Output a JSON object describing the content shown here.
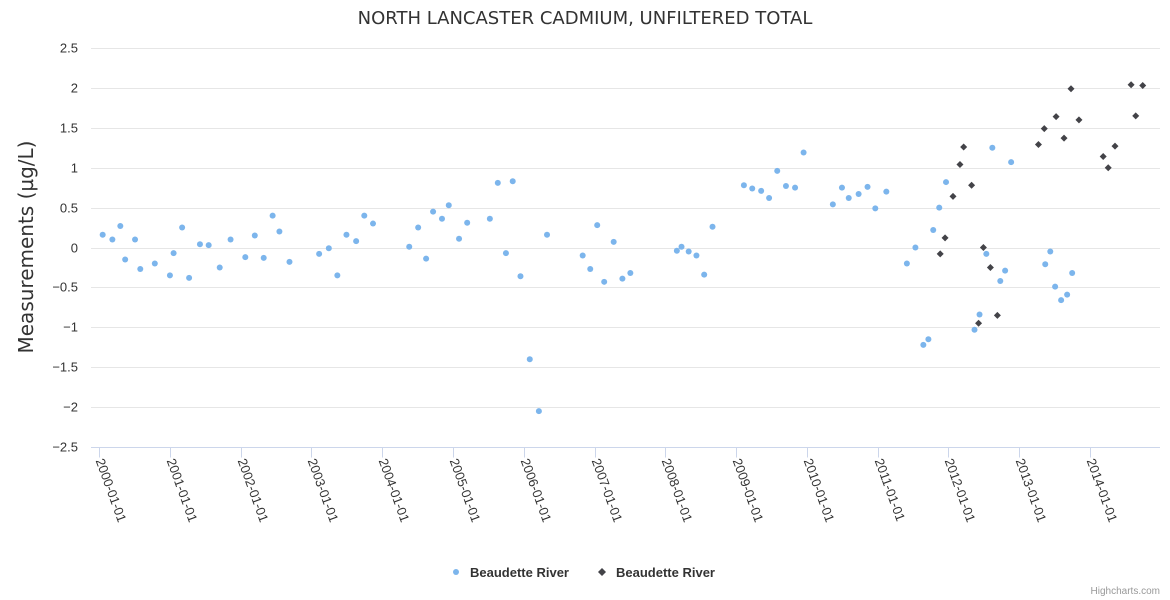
{
  "chart_data": {
    "type": "scatter",
    "title": "NORTH LANCASTER CADMIUM, UNFILTERED TOTAL",
    "xlabel": "",
    "ylabel": "Measurements (µg/L)",
    "ylim": [
      -2.5,
      2.5
    ],
    "y_ticks": [
      "2.5",
      "2",
      "1.5",
      "1",
      "0.5",
      "0",
      "−0.5",
      "−1",
      "−1.5",
      "−2",
      "−2.5"
    ],
    "x_ticks": [
      "2000-01-01",
      "2001-01-01",
      "2002-01-01",
      "2003-01-01",
      "2004-01-01",
      "2005-01-01",
      "2006-01-01",
      "2007-01-01",
      "2008-01-01",
      "2009-01-01",
      "2010-01-01",
      "2011-01-01",
      "2012-01-01",
      "2013-01-01",
      "2014-01-01"
    ],
    "xlim": [
      "2000-01-01",
      "2014-12-31"
    ],
    "grid": "horizontal",
    "legend_position": "bottom-center",
    "series": [
      {
        "name": "Beaudette River",
        "marker": "circle",
        "color": "#7cb5ec",
        "points": [
          [
            "2000-01-20",
            0.16
          ],
          [
            "2000-03-10",
            0.1
          ],
          [
            "2000-04-20",
            0.27
          ],
          [
            "2000-05-15",
            -0.15
          ],
          [
            "2000-07-05",
            0.1
          ],
          [
            "2000-08-01",
            -0.27
          ],
          [
            "2000-10-15",
            -0.2
          ],
          [
            "2001-01-01",
            -0.35
          ],
          [
            "2001-01-20",
            -0.07
          ],
          [
            "2001-03-05",
            0.25
          ],
          [
            "2001-04-10",
            -0.38
          ],
          [
            "2001-06-05",
            0.04
          ],
          [
            "2001-07-20",
            0.03
          ],
          [
            "2001-09-15",
            -0.25
          ],
          [
            "2001-11-10",
            0.1
          ],
          [
            "2002-01-25",
            -0.12
          ],
          [
            "2002-03-15",
            0.15
          ],
          [
            "2002-04-30",
            -0.13
          ],
          [
            "2002-06-15",
            0.4
          ],
          [
            "2002-07-20",
            0.2
          ],
          [
            "2002-09-10",
            -0.18
          ],
          [
            "2003-02-10",
            -0.08
          ],
          [
            "2003-04-01",
            -0.01
          ],
          [
            "2003-05-15",
            -0.35
          ],
          [
            "2003-07-01",
            0.16
          ],
          [
            "2003-08-20",
            0.08
          ],
          [
            "2003-10-01",
            0.4
          ],
          [
            "2003-11-15",
            0.3
          ],
          [
            "2004-05-20",
            0.01
          ],
          [
            "2004-07-05",
            0.25
          ],
          [
            "2004-08-15",
            -0.14
          ],
          [
            "2004-09-20",
            0.45
          ],
          [
            "2004-11-05",
            0.36
          ],
          [
            "2004-12-10",
            0.53
          ],
          [
            "2005-02-01",
            0.11
          ],
          [
            "2005-03-15",
            0.31
          ],
          [
            "2005-07-10",
            0.36
          ],
          [
            "2005-08-20",
            0.81
          ],
          [
            "2005-10-01",
            -0.07
          ],
          [
            "2005-11-05",
            0.83
          ],
          [
            "2005-12-15",
            -0.36
          ],
          [
            "2006-02-01",
            -1.4
          ],
          [
            "2006-03-20",
            -2.05
          ],
          [
            "2006-05-01",
            0.16
          ],
          [
            "2006-11-01",
            -0.1
          ],
          [
            "2006-12-10",
            -0.27
          ],
          [
            "2007-01-15",
            0.28
          ],
          [
            "2007-02-20",
            -0.43
          ],
          [
            "2007-04-10",
            0.07
          ],
          [
            "2007-05-25",
            -0.39
          ],
          [
            "2007-07-05",
            -0.32
          ],
          [
            "2008-03-01",
            -0.04
          ],
          [
            "2008-03-25",
            0.01
          ],
          [
            "2008-05-01",
            -0.05
          ],
          [
            "2008-06-10",
            -0.1
          ],
          [
            "2008-07-20",
            -0.34
          ],
          [
            "2008-09-01",
            0.26
          ],
          [
            "2009-02-10",
            0.78
          ],
          [
            "2009-03-25",
            0.74
          ],
          [
            "2009-05-10",
            0.71
          ],
          [
            "2009-06-20",
            0.62
          ],
          [
            "2009-08-01",
            0.96
          ],
          [
            "2009-09-15",
            0.77
          ],
          [
            "2009-11-01",
            0.75
          ],
          [
            "2009-12-15",
            1.19
          ],
          [
            "2010-05-15",
            0.54
          ],
          [
            "2010-07-01",
            0.75
          ],
          [
            "2010-08-05",
            0.62
          ],
          [
            "2010-09-25",
            0.67
          ],
          [
            "2010-11-10",
            0.76
          ],
          [
            "2010-12-20",
            0.49
          ],
          [
            "2011-02-15",
            0.7
          ],
          [
            "2011-06-01",
            -0.2
          ],
          [
            "2011-07-15",
            0.0
          ],
          [
            "2011-08-25",
            -1.22
          ],
          [
            "2011-09-20",
            -1.15
          ],
          [
            "2011-10-15",
            0.22
          ],
          [
            "2011-11-15",
            0.5
          ],
          [
            "2011-12-20",
            0.82
          ],
          [
            "2012-05-15",
            -1.03
          ],
          [
            "2012-06-10",
            -0.84
          ],
          [
            "2012-07-15",
            -0.08
          ],
          [
            "2012-08-15",
            1.25
          ],
          [
            "2012-09-25",
            -0.42
          ],
          [
            "2012-10-20",
            -0.29
          ],
          [
            "2012-11-20",
            1.07
          ],
          [
            "2013-05-15",
            -0.21
          ],
          [
            "2013-06-10",
            -0.05
          ],
          [
            "2013-07-05",
            -0.49
          ],
          [
            "2013-08-05",
            -0.66
          ],
          [
            "2013-09-05",
            -0.59
          ],
          [
            "2013-10-01",
            -0.32
          ]
        ]
      },
      {
        "name": "Beaudette River",
        "marker": "diamond",
        "color": "#434348",
        "points": [
          [
            "2011-11-20",
            -0.08
          ],
          [
            "2011-12-15",
            0.12
          ],
          [
            "2012-01-25",
            0.64
          ],
          [
            "2012-03-01",
            1.04
          ],
          [
            "2012-03-20",
            1.26
          ],
          [
            "2012-04-30",
            0.78
          ],
          [
            "2012-06-05",
            -0.95
          ],
          [
            "2012-06-30",
            0.0
          ],
          [
            "2012-08-05",
            -0.25
          ],
          [
            "2012-09-10",
            -0.85
          ],
          [
            "2013-04-10",
            1.29
          ],
          [
            "2013-05-10",
            1.49
          ],
          [
            "2013-07-10",
            1.64
          ],
          [
            "2013-08-20",
            1.37
          ],
          [
            "2013-09-25",
            1.99
          ],
          [
            "2013-11-05",
            1.6
          ],
          [
            "2014-03-10",
            1.14
          ],
          [
            "2014-04-05",
            1.0
          ],
          [
            "2014-05-10",
            1.27
          ],
          [
            "2014-08-01",
            2.04
          ],
          [
            "2014-08-25",
            1.65
          ],
          [
            "2014-09-30",
            2.03
          ]
        ]
      }
    ]
  },
  "legend": {
    "items": [
      {
        "label": "Beaudette River",
        "color": "#7cb5ec",
        "icon": "circle-icon"
      },
      {
        "label": "Beaudette River",
        "color": "#434348",
        "icon": "diamond-icon"
      }
    ]
  },
  "credits": "Highcharts.com"
}
